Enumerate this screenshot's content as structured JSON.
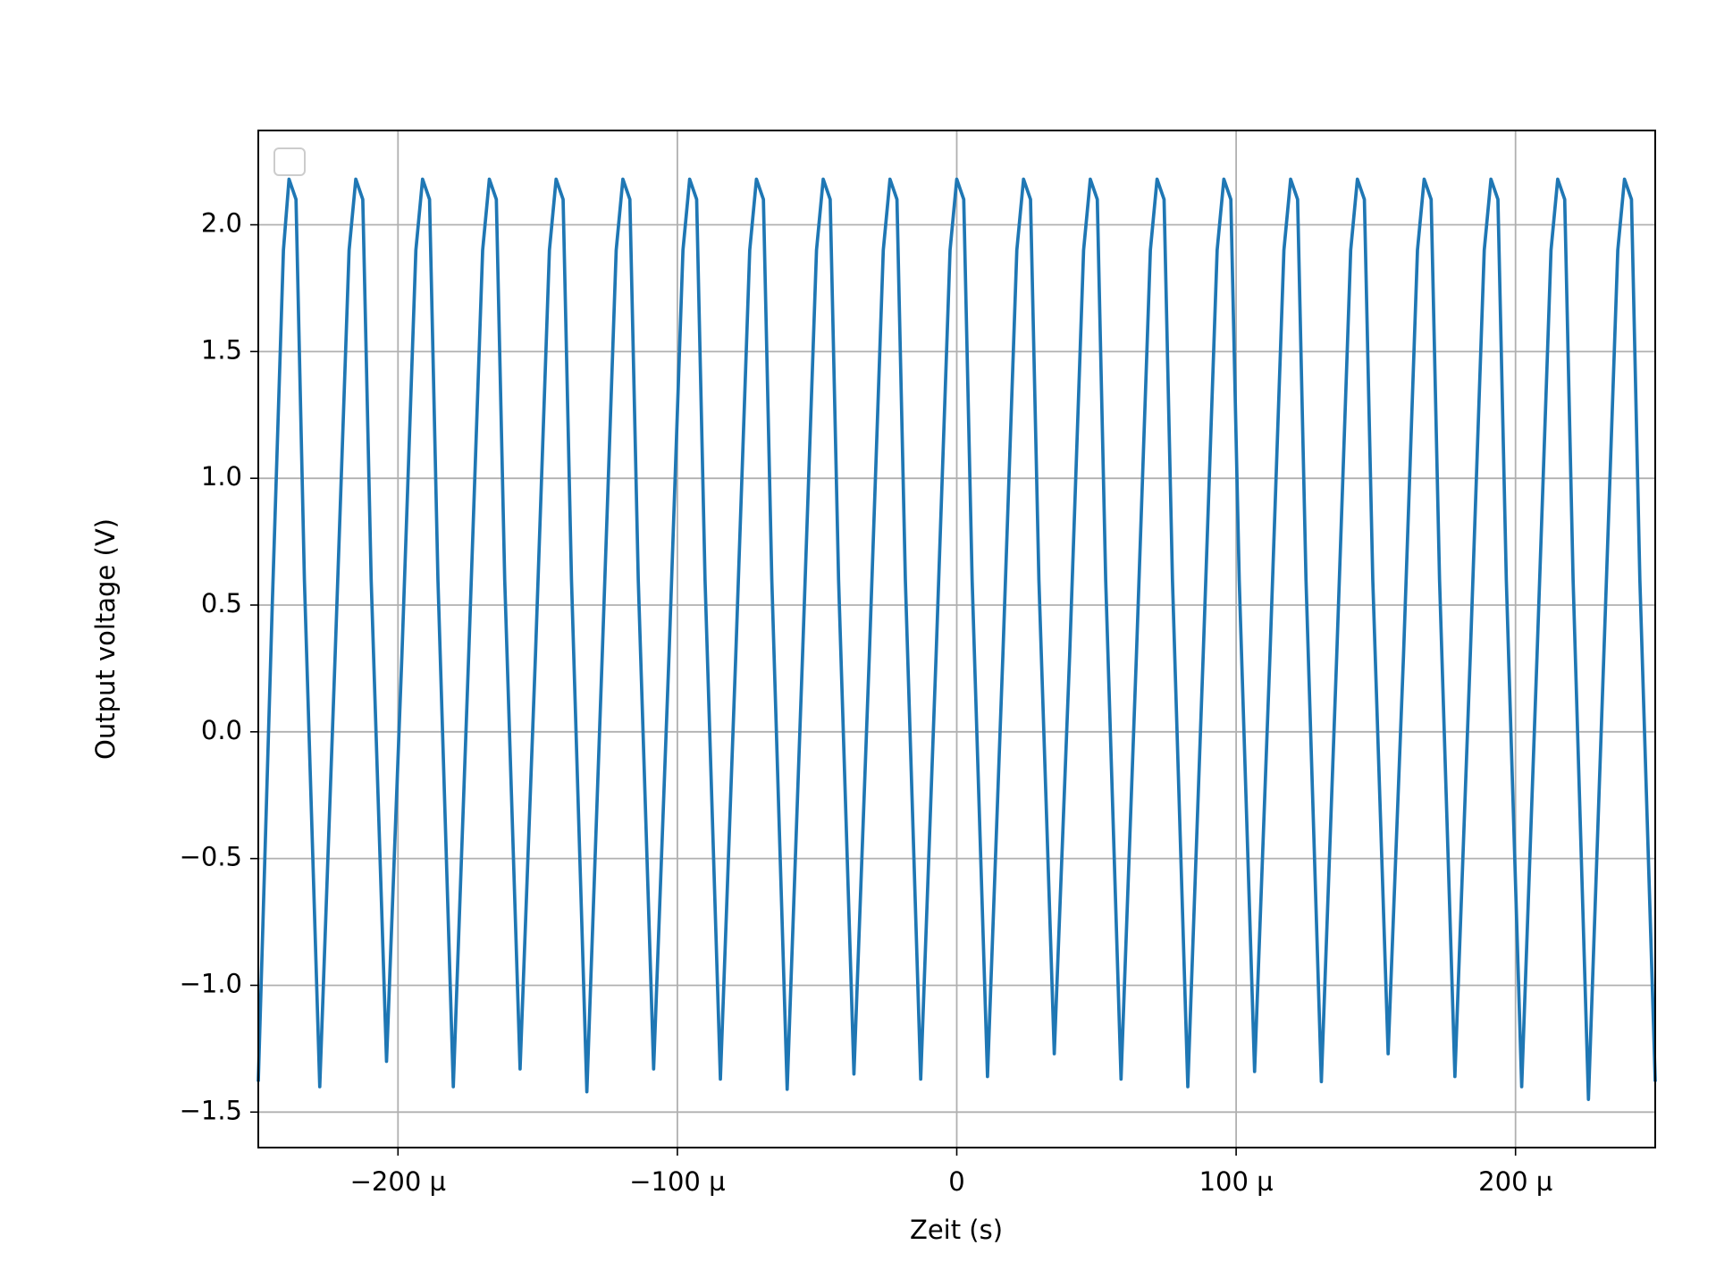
{
  "chart_data": {
    "type": "line",
    "xlabel": "Zeit (s)",
    "ylabel": "Output voltage (V)",
    "color": "#1f77b4",
    "grid": true,
    "xlim": [
      -0.00025,
      0.00025
    ],
    "ylim": [
      -1.64,
      2.372
    ],
    "xticks": [
      {
        "value": -0.0002,
        "label": "−200 µ"
      },
      {
        "value": -0.0001,
        "label": "−100 µ"
      },
      0,
      {
        "value": 0.0001,
        "label": "100 µ"
      },
      {
        "value": 0.0002,
        "label": "200 µ"
      }
    ],
    "yticks": [
      {
        "value": -1.5,
        "label": "−1.5"
      },
      {
        "value": -1.0,
        "label": "−1.0"
      },
      {
        "value": -0.5,
        "label": "−0.5"
      },
      {
        "value": 0.0,
        "label": "0.0"
      },
      0.5,
      {
        "value": 1.0,
        "label": "1.0"
      },
      1.5,
      {
        "value": 2.0,
        "label": "2.0"
      }
    ],
    "x": [
      -0.00025,
      -0.000245,
      -0.000241,
      -0.000239,
      -0.0002365,
      -0.0002335,
      -0.000228,
      -0.0002225,
      -0.0002175,
      -0.0002151,
      -0.0002126,
      -0.0002096,
      -0.0002041,
      -0.0001986,
      -0.0001936,
      -0.0001912,
      -0.0001887,
      -0.0001857,
      -0.0001802,
      -0.0001747,
      -0.0001697,
      -0.0001673,
      -0.0001648,
      -0.0001618,
      -0.0001563,
      -0.0001508,
      -0.0001458,
      -0.0001434,
      -0.0001409,
      -0.0001379,
      -0.0001324,
      -0.0001269,
      -0.0001219,
      -0.0001195,
      -0.000117,
      -0.000114,
      -0.0001085,
      -0.000103,
      -9.8e-05,
      -9.56e-05,
      -9.31e-05,
      -9.01e-05,
      -8.46e-05,
      -7.91e-05,
      -7.41e-05,
      -7.17e-05,
      -6.92e-05,
      -6.62e-05,
      -6.07e-05,
      -5.52e-05,
      -5.02e-05,
      -4.78e-05,
      -4.53e-05,
      -4.23e-05,
      -3.68e-05,
      -3.13e-05,
      -2.63e-05,
      -2.39e-05,
      -2.14e-05,
      -1.84e-05,
      -1.29e-05,
      -7.4e-06,
      -2.4e-06,
      0,
      2.5e-06,
      5.5e-06,
      1.1e-05,
      1.65e-05,
      2.15e-05,
      2.39e-05,
      2.64e-05,
      2.94e-05,
      3.49e-05,
      4.04e-05,
      4.54e-05,
      4.78e-05,
      5.03e-05,
      5.33e-05,
      5.88e-05,
      6.43e-05,
      6.93e-05,
      7.17e-05,
      7.42e-05,
      7.72e-05,
      8.27e-05,
      8.82e-05,
      9.32e-05,
      9.56e-05,
      9.81e-05,
      0.0001011,
      0.0001066,
      0.0001121,
      0.0001171,
      0.0001195,
      0.000122,
      0.000125,
      0.0001305,
      0.000136,
      0.000141,
      0.0001434,
      0.0001459,
      0.0001489,
      0.0001544,
      0.0001599,
      0.0001649,
      0.0001673,
      0.0001698,
      0.0001728,
      0.0001783,
      0.0001838,
      0.0001888,
      0.0001912,
      0.0001937,
      0.0001967,
      0.0002022,
      0.0002077,
      0.0002127,
      0.0002151,
      0.0002176,
      0.0002206,
      0.0002261,
      0.0002316,
      0.0002366,
      0.000239,
      0.0002415,
      0.0002445,
      0.00025
    ],
    "values": [
      -1.38,
      0.5,
      1.9,
      2.18,
      2.1,
      0.6,
      -1.4,
      0.3,
      1.9,
      2.18,
      2.1,
      0.6,
      -1.3,
      0.3,
      1.9,
      2.18,
      2.1,
      0.6,
      -1.4,
      0.3,
      1.9,
      2.18,
      2.1,
      0.6,
      -1.33,
      0.3,
      1.9,
      2.18,
      2.1,
      0.6,
      -1.42,
      0.3,
      1.9,
      2.18,
      2.1,
      0.6,
      -1.33,
      0.3,
      1.9,
      2.18,
      2.1,
      0.6,
      -1.37,
      0.3,
      1.9,
      2.18,
      2.1,
      0.6,
      -1.41,
      0.3,
      1.9,
      2.18,
      2.1,
      0.6,
      -1.35,
      0.3,
      1.9,
      2.18,
      2.1,
      0.6,
      -1.37,
      0.3,
      1.9,
      2.18,
      2.1,
      0.6,
      -1.36,
      0.3,
      1.9,
      2.18,
      2.1,
      0.6,
      -1.27,
      0.3,
      1.9,
      2.18,
      2.1,
      0.6,
      -1.37,
      0.3,
      1.9,
      2.18,
      2.1,
      0.6,
      -1.4,
      0.3,
      1.9,
      2.18,
      2.1,
      0.6,
      -1.34,
      0.3,
      1.9,
      2.18,
      2.1,
      0.6,
      -1.38,
      0.3,
      1.9,
      2.18,
      2.1,
      0.6,
      -1.27,
      0.3,
      1.9,
      2.18,
      2.1,
      0.6,
      -1.36,
      0.3,
      1.9,
      2.18,
      2.1,
      0.6,
      -1.4,
      0.3,
      1.9,
      2.18,
      2.1,
      0.6,
      -1.45,
      0.3,
      1.9,
      2.18,
      2.1,
      0.6,
      -1.38
    ]
  }
}
